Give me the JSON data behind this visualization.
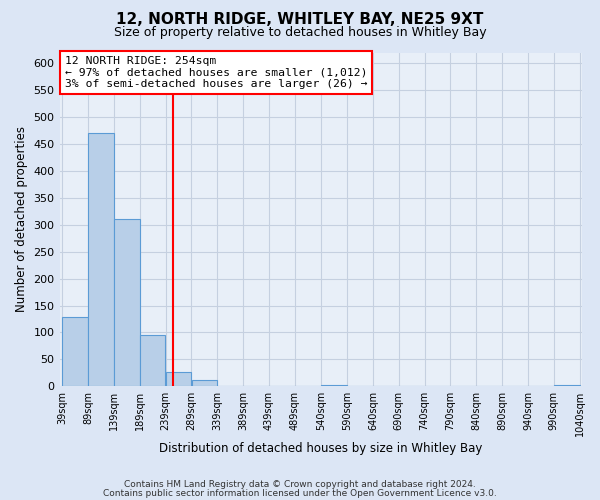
{
  "title": "12, NORTH RIDGE, WHITLEY BAY, NE25 9XT",
  "subtitle": "Size of property relative to detached houses in Whitley Bay",
  "xlabel": "Distribution of detached houses by size in Whitley Bay",
  "ylabel": "Number of detached properties",
  "bar_edges": [
    39,
    89,
    139,
    189,
    239,
    289,
    339,
    389,
    439,
    489,
    540,
    590,
    640,
    690,
    740,
    790,
    840,
    890,
    940,
    990,
    1040
  ],
  "bar_heights": [
    128,
    470,
    310,
    96,
    26,
    11,
    0,
    0,
    0,
    0,
    3,
    0,
    0,
    0,
    0,
    0,
    0,
    0,
    0,
    2
  ],
  "bar_color": "#b8cfe8",
  "bar_edge_color": "#5b9bd5",
  "vline_x": 254,
  "vline_color": "red",
  "annotation_title": "12 NORTH RIDGE: 254sqm",
  "annotation_line1": "← 97% of detached houses are smaller (1,012)",
  "annotation_line2": "3% of semi-detached houses are larger (26) →",
  "annotation_box_color": "white",
  "annotation_box_edge_color": "red",
  "ylim": [
    0,
    620
  ],
  "yticks": [
    0,
    50,
    100,
    150,
    200,
    250,
    300,
    350,
    400,
    450,
    500,
    550,
    600
  ],
  "footer1": "Contains HM Land Registry data © Crown copyright and database right 2024.",
  "footer2": "Contains public sector information licensed under the Open Government Licence v3.0.",
  "bg_color": "#dce6f5",
  "plot_bg_color": "#e8eff8",
  "grid_color": "#c5d0e0"
}
